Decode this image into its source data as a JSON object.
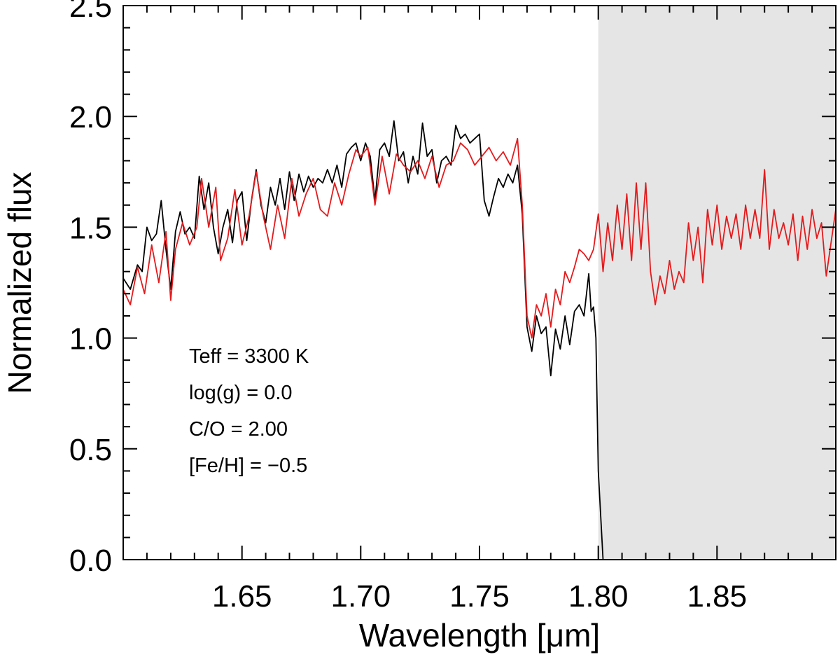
{
  "chart_data": {
    "type": "line",
    "xlabel": "Wavelength [μm]",
    "ylabel": "Normalized flux",
    "xlim": [
      1.6,
      1.9
    ],
    "ylim": [
      0.0,
      2.5
    ],
    "x_ticks": [
      {
        "value": 1.65,
        "label": "1.65"
      },
      {
        "value": 1.7,
        "label": "1.70"
      },
      {
        "value": 1.75,
        "label": "1.75"
      },
      {
        "value": 1.8,
        "label": "1.80"
      },
      {
        "value": 1.85,
        "label": "1.85"
      }
    ],
    "y_ticks": [
      {
        "value": 0.0,
        "label": "0.0"
      },
      {
        "value": 0.5,
        "label": "0.5"
      },
      {
        "value": 1.0,
        "label": "1.0"
      },
      {
        "value": 1.5,
        "label": "1.5"
      },
      {
        "value": 2.0,
        "label": "2.0"
      },
      {
        "value": 2.5,
        "label": "2.5"
      }
    ],
    "shaded_region": {
      "x_start": 1.8,
      "x_end": 1.9,
      "color": "#e5e5e5"
    },
    "annotations": [
      "Teff = 3300 K",
      "log(g) = 0.0",
      "C/O = 2.00",
      "[Fe/H] = −0.5"
    ],
    "series": [
      {
        "name": "observed",
        "color": "#000000",
        "points": [
          [
            1.6,
            1.27
          ],
          [
            1.603,
            1.22
          ],
          [
            1.606,
            1.33
          ],
          [
            1.608,
            1.3
          ],
          [
            1.61,
            1.5
          ],
          [
            1.612,
            1.44
          ],
          [
            1.614,
            1.47
          ],
          [
            1.616,
            1.62
          ],
          [
            1.618,
            1.4
          ],
          [
            1.62,
            1.22
          ],
          [
            1.622,
            1.48
          ],
          [
            1.624,
            1.57
          ],
          [
            1.626,
            1.47
          ],
          [
            1.628,
            1.5
          ],
          [
            1.63,
            1.45
          ],
          [
            1.632,
            1.73
          ],
          [
            1.634,
            1.58
          ],
          [
            1.636,
            1.7
          ],
          [
            1.638,
            1.5
          ],
          [
            1.64,
            1.38
          ],
          [
            1.642,
            1.5
          ],
          [
            1.644,
            1.58
          ],
          [
            1.646,
            1.43
          ],
          [
            1.648,
            1.62
          ],
          [
            1.65,
            1.66
          ],
          [
            1.652,
            1.44
          ],
          [
            1.654,
            1.62
          ],
          [
            1.656,
            1.76
          ],
          [
            1.658,
            1.6
          ],
          [
            1.66,
            1.52
          ],
          [
            1.662,
            1.68
          ],
          [
            1.664,
            1.6
          ],
          [
            1.666,
            1.72
          ],
          [
            1.668,
            1.58
          ],
          [
            1.67,
            1.75
          ],
          [
            1.672,
            1.62
          ],
          [
            1.674,
            1.74
          ],
          [
            1.676,
            1.66
          ],
          [
            1.678,
            1.73
          ],
          [
            1.68,
            1.68
          ],
          [
            1.682,
            1.72
          ],
          [
            1.684,
            1.7
          ],
          [
            1.686,
            1.76
          ],
          [
            1.688,
            1.7
          ],
          [
            1.69,
            1.78
          ],
          [
            1.692,
            1.68
          ],
          [
            1.694,
            1.83
          ],
          [
            1.696,
            1.86
          ],
          [
            1.698,
            1.88
          ],
          [
            1.7,
            1.8
          ],
          [
            1.702,
            1.88
          ],
          [
            1.704,
            1.82
          ],
          [
            1.706,
            1.62
          ],
          [
            1.708,
            1.85
          ],
          [
            1.71,
            1.88
          ],
          [
            1.712,
            1.82
          ],
          [
            1.714,
            1.98
          ],
          [
            1.716,
            1.8
          ],
          [
            1.718,
            1.84
          ],
          [
            1.72,
            1.7
          ],
          [
            1.722,
            1.82
          ],
          [
            1.724,
            1.74
          ],
          [
            1.726,
            1.97
          ],
          [
            1.728,
            1.82
          ],
          [
            1.73,
            1.85
          ],
          [
            1.732,
            1.7
          ],
          [
            1.734,
            1.8
          ],
          [
            1.736,
            1.82
          ],
          [
            1.738,
            1.78
          ],
          [
            1.74,
            1.96
          ],
          [
            1.742,
            1.9
          ],
          [
            1.744,
            1.92
          ],
          [
            1.746,
            1.88
          ],
          [
            1.748,
            1.9
          ],
          [
            1.75,
            1.92
          ],
          [
            1.752,
            1.62
          ],
          [
            1.754,
            1.55
          ],
          [
            1.756,
            1.64
          ],
          [
            1.758,
            1.72
          ],
          [
            1.76,
            1.68
          ],
          [
            1.762,
            1.74
          ],
          [
            1.764,
            1.7
          ],
          [
            1.766,
            1.78
          ],
          [
            1.768,
            1.56
          ],
          [
            1.77,
            1.05
          ],
          [
            1.772,
            0.94
          ],
          [
            1.774,
            1.1
          ],
          [
            1.776,
            1.02
          ],
          [
            1.778,
            1.05
          ],
          [
            1.78,
            0.83
          ],
          [
            1.782,
            1.04
          ],
          [
            1.784,
            0.95
          ],
          [
            1.786,
            1.1
          ],
          [
            1.788,
            0.97
          ],
          [
            1.79,
            1.12
          ],
          [
            1.792,
            1.15
          ],
          [
            1.794,
            1.1
          ],
          [
            1.796,
            1.29
          ],
          [
            1.797,
            1.12
          ],
          [
            1.798,
            1.14
          ],
          [
            1.799,
            1.0
          ],
          [
            1.8,
            0.4
          ],
          [
            1.802,
            0.0
          ]
        ]
      },
      {
        "name": "model",
        "color": "#e41a1c",
        "points": [
          [
            1.6,
            1.22
          ],
          [
            1.603,
            1.15
          ],
          [
            1.606,
            1.32
          ],
          [
            1.609,
            1.2
          ],
          [
            1.612,
            1.42
          ],
          [
            1.615,
            1.25
          ],
          [
            1.618,
            1.48
          ],
          [
            1.62,
            1.17
          ],
          [
            1.622,
            1.4
          ],
          [
            1.625,
            1.52
          ],
          [
            1.628,
            1.42
          ],
          [
            1.631,
            1.5
          ],
          [
            1.633,
            1.72
          ],
          [
            1.636,
            1.5
          ],
          [
            1.639,
            1.68
          ],
          [
            1.641,
            1.35
          ],
          [
            1.644,
            1.45
          ],
          [
            1.647,
            1.67
          ],
          [
            1.65,
            1.42
          ],
          [
            1.653,
            1.55
          ],
          [
            1.656,
            1.75
          ],
          [
            1.659,
            1.55
          ],
          [
            1.662,
            1.4
          ],
          [
            1.665,
            1.6
          ],
          [
            1.668,
            1.45
          ],
          [
            1.671,
            1.72
          ],
          [
            1.674,
            1.55
          ],
          [
            1.677,
            1.65
          ],
          [
            1.68,
            1.72
          ],
          [
            1.683,
            1.58
          ],
          [
            1.686,
            1.55
          ],
          [
            1.689,
            1.7
          ],
          [
            1.692,
            1.6
          ],
          [
            1.695,
            1.74
          ],
          [
            1.698,
            1.85
          ],
          [
            1.7,
            1.82
          ],
          [
            1.703,
            1.86
          ],
          [
            1.706,
            1.6
          ],
          [
            1.709,
            1.82
          ],
          [
            1.712,
            1.65
          ],
          [
            1.715,
            1.83
          ],
          [
            1.718,
            1.78
          ],
          [
            1.721,
            1.75
          ],
          [
            1.724,
            1.8
          ],
          [
            1.727,
            1.72
          ],
          [
            1.73,
            1.82
          ],
          [
            1.733,
            1.68
          ],
          [
            1.736,
            1.78
          ],
          [
            1.739,
            1.8
          ],
          [
            1.742,
            1.88
          ],
          [
            1.745,
            1.85
          ],
          [
            1.748,
            1.78
          ],
          [
            1.751,
            1.82
          ],
          [
            1.754,
            1.86
          ],
          [
            1.757,
            1.8
          ],
          [
            1.76,
            1.84
          ],
          [
            1.763,
            1.78
          ],
          [
            1.766,
            1.9
          ],
          [
            1.768,
            1.6
          ],
          [
            1.77,
            1.1
          ],
          [
            1.772,
            1.0
          ],
          [
            1.774,
            1.15
          ],
          [
            1.776,
            1.1
          ],
          [
            1.778,
            1.2
          ],
          [
            1.78,
            1.05
          ],
          [
            1.782,
            1.22
          ],
          [
            1.784,
            1.15
          ],
          [
            1.786,
            1.3
          ],
          [
            1.788,
            1.25
          ],
          [
            1.79,
            1.32
          ],
          [
            1.792,
            1.4
          ],
          [
            1.794,
            1.38
          ],
          [
            1.796,
            1.35
          ],
          [
            1.798,
            1.4
          ],
          [
            1.8,
            1.56
          ],
          [
            1.802,
            1.3
          ],
          [
            1.804,
            1.52
          ],
          [
            1.806,
            1.35
          ],
          [
            1.808,
            1.6
          ],
          [
            1.81,
            1.4
          ],
          [
            1.812,
            1.65
          ],
          [
            1.814,
            1.35
          ],
          [
            1.816,
            1.7
          ],
          [
            1.818,
            1.4
          ],
          [
            1.82,
            1.7
          ],
          [
            1.822,
            1.3
          ],
          [
            1.824,
            1.15
          ],
          [
            1.826,
            1.28
          ],
          [
            1.828,
            1.2
          ],
          [
            1.83,
            1.35
          ],
          [
            1.832,
            1.22
          ],
          [
            1.834,
            1.3
          ],
          [
            1.836,
            1.25
          ],
          [
            1.838,
            1.52
          ],
          [
            1.84,
            1.35
          ],
          [
            1.842,
            1.5
          ],
          [
            1.844,
            1.25
          ],
          [
            1.846,
            1.58
          ],
          [
            1.848,
            1.42
          ],
          [
            1.85,
            1.6
          ],
          [
            1.852,
            1.4
          ],
          [
            1.854,
            1.55
          ],
          [
            1.856,
            1.45
          ],
          [
            1.858,
            1.56
          ],
          [
            1.86,
            1.4
          ],
          [
            1.862,
            1.6
          ],
          [
            1.864,
            1.45
          ],
          [
            1.866,
            1.58
          ],
          [
            1.868,
            1.45
          ],
          [
            1.87,
            1.76
          ],
          [
            1.872,
            1.4
          ],
          [
            1.874,
            1.58
          ],
          [
            1.876,
            1.45
          ],
          [
            1.878,
            1.52
          ],
          [
            1.88,
            1.42
          ],
          [
            1.882,
            1.56
          ],
          [
            1.884,
            1.35
          ],
          [
            1.886,
            1.55
          ],
          [
            1.888,
            1.4
          ],
          [
            1.89,
            1.58
          ],
          [
            1.892,
            1.45
          ],
          [
            1.894,
            1.52
          ],
          [
            1.896,
            1.28
          ],
          [
            1.9,
            1.58
          ]
        ]
      }
    ]
  }
}
